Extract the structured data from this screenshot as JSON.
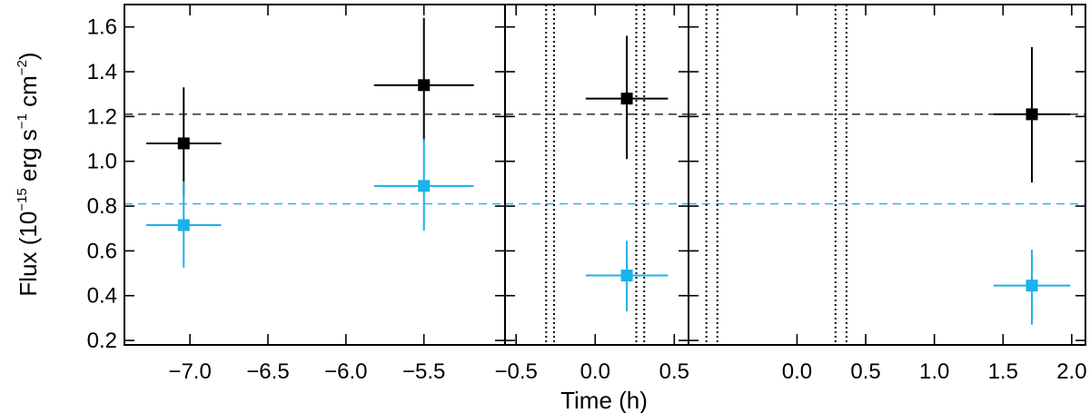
{
  "chart_data": {
    "type": "scatter",
    "xlabel": "Time (h)",
    "ylabel": {
      "prefix": "Flux (10",
      "exp1": "−15",
      "mid1": " erg s",
      "exp2": "−1",
      "mid2": " cm",
      "exp3": "−2",
      "suffix": ")"
    },
    "ylim": [
      0.18,
      1.7
    ],
    "y_ticks": [
      0.2,
      0.4,
      0.6,
      0.8,
      1.0,
      1.2,
      1.4,
      1.6
    ],
    "y_tick_labels": [
      "0.2",
      "0.4",
      "0.6",
      "0.8",
      "1.0",
      "1.2",
      "1.4",
      "1.6"
    ],
    "colors": {
      "black_series": "#000000",
      "cyan_series": "#1ab2e8"
    },
    "reference_levels": [
      {
        "y": 1.21,
        "color": "#000000",
        "style": "dashed"
      },
      {
        "y": 0.81,
        "color": "#1ab2e8",
        "style": "dashed"
      }
    ],
    "panels": [
      {
        "xlim": [
          -7.42,
          -4.98
        ],
        "x_ticks": [
          -7.0,
          -6.5,
          -6.0,
          -5.5
        ],
        "x_tick_labels": [
          "−7.0",
          "−6.5",
          "−6.0",
          "−5.5"
        ],
        "vlines": [],
        "points": [
          {
            "series": "black",
            "x": -7.04,
            "xerr": 0.24,
            "y": 1.08,
            "ylo": 0.84,
            "yhi": 1.33
          },
          {
            "series": "black",
            "x": -5.5,
            "xerr": 0.32,
            "y": 1.34,
            "ylo": 1.09,
            "yhi": 1.64
          },
          {
            "series": "cyan",
            "x": -7.04,
            "xerr": 0.24,
            "y": 0.715,
            "ylo": 0.525,
            "yhi": 0.91
          },
          {
            "series": "cyan",
            "x": -5.5,
            "xerr": 0.32,
            "y": 0.89,
            "ylo": 0.69,
            "yhi": 1.1
          }
        ]
      },
      {
        "xlim": [
          -0.57,
          0.59
        ],
        "x_ticks": [
          -0.5,
          0.0,
          0.5
        ],
        "x_tick_labels": [
          "−0.5",
          "0.0",
          "0.5"
        ],
        "vlines": [
          -0.31,
          -0.26,
          0.26,
          0.31
        ],
        "points": [
          {
            "series": "black",
            "x": 0.2,
            "xerr": 0.26,
            "y": 1.28,
            "ylo": 1.01,
            "yhi": 1.56
          },
          {
            "series": "cyan",
            "x": 0.2,
            "xerr": 0.26,
            "y": 0.49,
            "ylo": 0.33,
            "yhi": 0.645
          }
        ]
      },
      {
        "xlim": [
          -0.79,
          2.1
        ],
        "x_ticks": [
          0.0,
          0.5,
          1.0,
          1.5,
          2.0
        ],
        "x_tick_labels": [
          "0.0",
          "0.5",
          "1.0",
          "1.5",
          "2.0"
        ],
        "vlines": [
          -0.66,
          -0.58,
          0.28,
          0.36
        ],
        "points": [
          {
            "series": "black",
            "x": 1.71,
            "xerr": 0.28,
            "y": 1.21,
            "ylo": 0.905,
            "yhi": 1.51
          },
          {
            "series": "cyan",
            "x": 1.71,
            "xerr": 0.28,
            "y": 0.445,
            "ylo": 0.27,
            "yhi": 0.605
          }
        ]
      }
    ]
  }
}
